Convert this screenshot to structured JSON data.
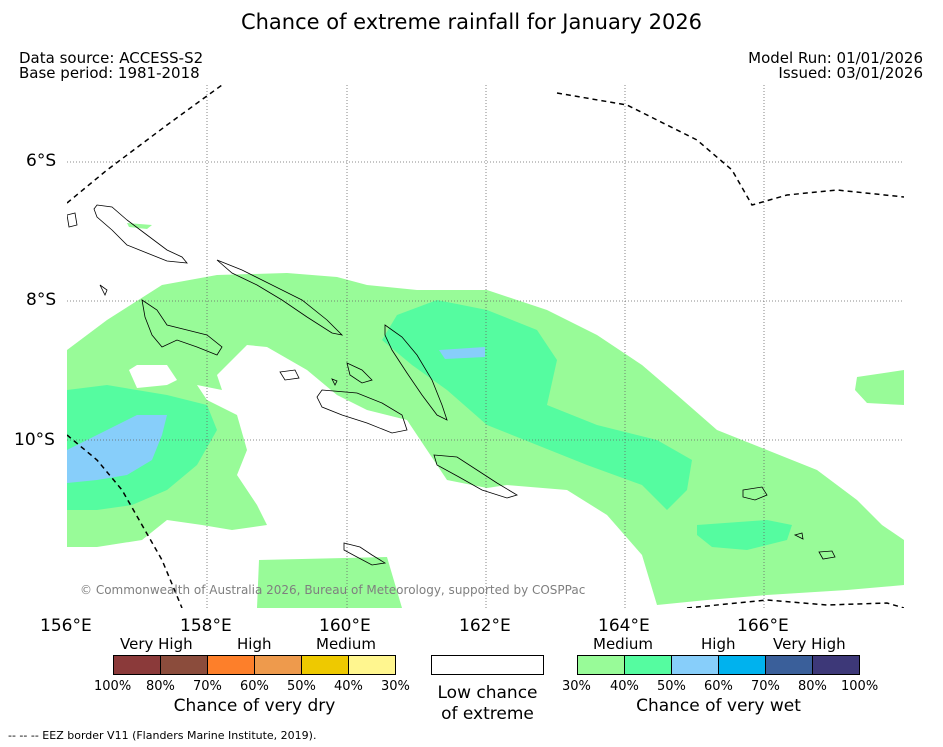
{
  "title": "Chance of extreme rainfall for January 2026",
  "header": {
    "data_source": "Data source: ACCESS-S2",
    "base_period": "Base period: 1981-2018",
    "model_run": "Model Run: 01/01/2026",
    "issued": "Issued: 03/01/2026"
  },
  "map": {
    "lat_labels": [
      "6°S",
      "8°S",
      "10°S"
    ],
    "lon_labels": [
      "156°E",
      "158°E",
      "160°E",
      "162°E",
      "164°E",
      "166°E"
    ],
    "copyright": "© Commonwealth of Australia 2026, Bureau of Meteorology, supported by COSPPac"
  },
  "colors": {
    "medium_wet": "#98fb98",
    "wet_40_50": "#55fca0",
    "high_wet": "#87cefa",
    "land_outline": "#000000",
    "eez_border": "#000000"
  },
  "legend": {
    "dry": {
      "levels": [
        {
          "label": "Very High",
          "colors": [
            "#8b3a3a",
            "#8b4c3c"
          ]
        },
        {
          "label": "High",
          "colors": [
            "#fd7f2a",
            "#ee9a4c"
          ]
        },
        {
          "label": "Medium",
          "colors": [
            "#eec900",
            "#fff68f"
          ]
        }
      ],
      "ticks": [
        "100%",
        "80%",
        "70%",
        "60%",
        "50%",
        "40%",
        "30%"
      ],
      "title": "Chance of very dry"
    },
    "neutral": {
      "color": "#ffffff",
      "title_line1": "Low chance",
      "title_line2": "of extreme"
    },
    "wet": {
      "levels": [
        {
          "label": "Medium",
          "colors": [
            "#98fb98",
            "#55fca0"
          ]
        },
        {
          "label": "High",
          "colors": [
            "#87cefa",
            "#00b2ee"
          ]
        },
        {
          "label": "Very High",
          "colors": [
            "#3a5f9a",
            "#3d3878"
          ]
        }
      ],
      "ticks": [
        "30%",
        "40%",
        "50%",
        "60%",
        "70%",
        "80%",
        "100%"
      ],
      "title": "Chance of very wet"
    }
  },
  "footer": "--  --  -- EEZ border V11 (Flanders Marine Institute, 2019)."
}
